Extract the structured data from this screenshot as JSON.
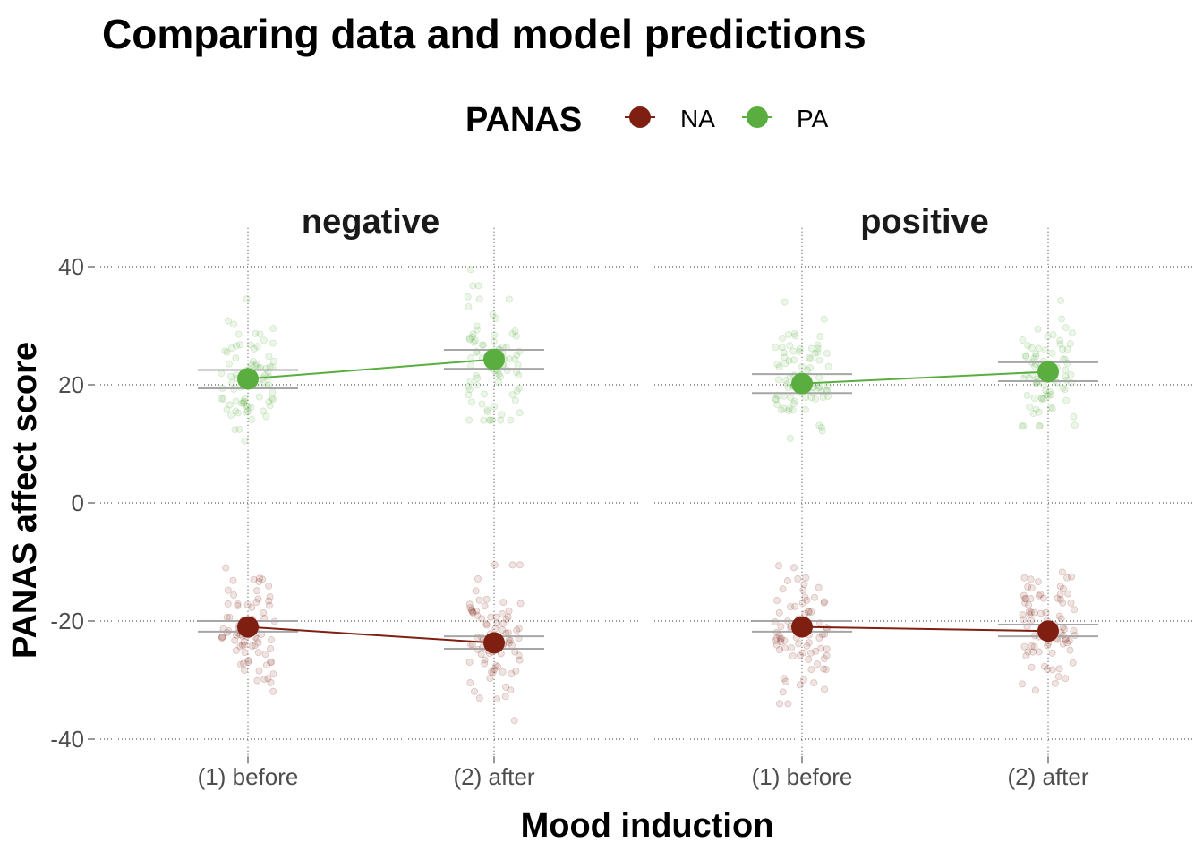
{
  "chart_data": {
    "type": "scatter",
    "title": "Comparing data and model predictions",
    "xlabel": "Mood induction",
    "ylabel": "PANAS affect score",
    "ylim": [
      -42,
      42
    ],
    "yticks": [
      -40,
      -20,
      0,
      20,
      40
    ],
    "categories": [
      "(1) before",
      "(2) after"
    ],
    "legend": {
      "title": "PANAS",
      "placement": "top",
      "entries": [
        {
          "label": "NA",
          "color": "#7f1f12"
        },
        {
          "label": "PA",
          "color": "#5aae3f"
        }
      ]
    },
    "facets": [
      {
        "label": "negative",
        "series": [
          {
            "name": "NA",
            "color": "#7f1f12",
            "values": [
              -21,
              -23.7
            ],
            "ci_low": [
              -21.8,
              -24.7
            ],
            "ci_high": [
              -20,
              -22.6
            ],
            "raw": [
              {
                "center": -21,
                "lo": -38,
                "hi": -11,
                "sd": 5.5,
                "n": 80
              },
              {
                "center": -23.5,
                "lo": -37,
                "hi": -10.5,
                "sd": 5.5,
                "n": 80
              }
            ]
          },
          {
            "name": "PA",
            "color": "#5aae3f",
            "values": [
              21,
              24.3
            ],
            "ci_low": [
              19.4,
              22.7
            ],
            "ci_high": [
              22.5,
              25.9
            ],
            "raw": [
              {
                "center": 21,
                "lo": 10.5,
                "hi": 34.5,
                "sd": 5,
                "n": 80
              },
              {
                "center": 24.5,
                "lo": 14,
                "hi": 39.5,
                "sd": 6,
                "n": 80
              }
            ]
          }
        ]
      },
      {
        "label": "positive",
        "series": [
          {
            "name": "NA",
            "color": "#7f1f12",
            "values": [
              -21,
              -21.7
            ],
            "ci_low": [
              -21.8,
              -22.6
            ],
            "ci_high": [
              -20,
              -20.6
            ],
            "raw": [
              {
                "center": -21,
                "lo": -34,
                "hi": -10.5,
                "sd": 5,
                "n": 80
              },
              {
                "center": -21.5,
                "lo": -34,
                "hi": -10.5,
                "sd": 5,
                "n": 80
              }
            ]
          },
          {
            "name": "PA",
            "color": "#5aae3f",
            "values": [
              20.2,
              22.2
            ],
            "ci_low": [
              18.6,
              20.6
            ],
            "ci_high": [
              21.8,
              23.8
            ],
            "raw": [
              {
                "center": 20.5,
                "lo": 10,
                "hi": 34,
                "sd": 5,
                "n": 80
              },
              {
                "center": 22,
                "lo": 13,
                "hi": 35.5,
                "sd": 5,
                "n": 80
              }
            ]
          }
        ]
      }
    ]
  }
}
